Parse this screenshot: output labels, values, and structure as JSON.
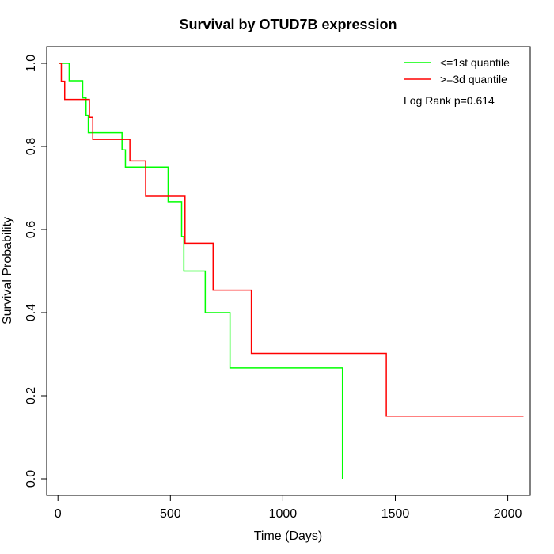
{
  "chart_data": {
    "type": "line",
    "title": "Survival by OTUD7B expression",
    "xlabel": "Time (Days)",
    "ylabel": "Survival Probability",
    "xlim": [
      -50,
      2100
    ],
    "ylim": [
      -0.04,
      1.04
    ],
    "x_ticks": [
      0,
      500,
      1000,
      1500,
      2000
    ],
    "x_tick_labels": [
      "0",
      "500",
      "1000",
      "1500",
      "2000"
    ],
    "y_ticks": [
      0.0,
      0.2,
      0.4,
      0.6,
      0.8,
      1.0
    ],
    "y_tick_labels": [
      "0.0",
      "0.2",
      "0.4",
      "0.6",
      "0.8",
      "1.0"
    ],
    "grid": false,
    "legend_position": "top-right",
    "annotation": "Log Rank p=0.614",
    "series": [
      {
        "name": "<=1st quantile",
        "color": "#00ff00",
        "step": true,
        "x": [
          5,
          50,
          110,
          125,
          135,
          285,
          300,
          490,
          550,
          560,
          655,
          765,
          1265,
          1265
        ],
        "y": [
          1.0,
          0.958,
          0.917,
          0.875,
          0.833,
          0.792,
          0.75,
          0.667,
          0.583,
          0.5,
          0.4,
          0.267,
          0.267,
          0.0
        ]
      },
      {
        "name": ">=3d quantile",
        "color": "#ff0000",
        "step": true,
        "x": [
          5,
          15,
          30,
          140,
          155,
          320,
          390,
          565,
          690,
          860,
          1460,
          2070
        ],
        "y": [
          1.0,
          0.957,
          0.913,
          0.87,
          0.817,
          0.765,
          0.68,
          0.567,
          0.454,
          0.302,
          0.151,
          0.151
        ]
      }
    ]
  }
}
